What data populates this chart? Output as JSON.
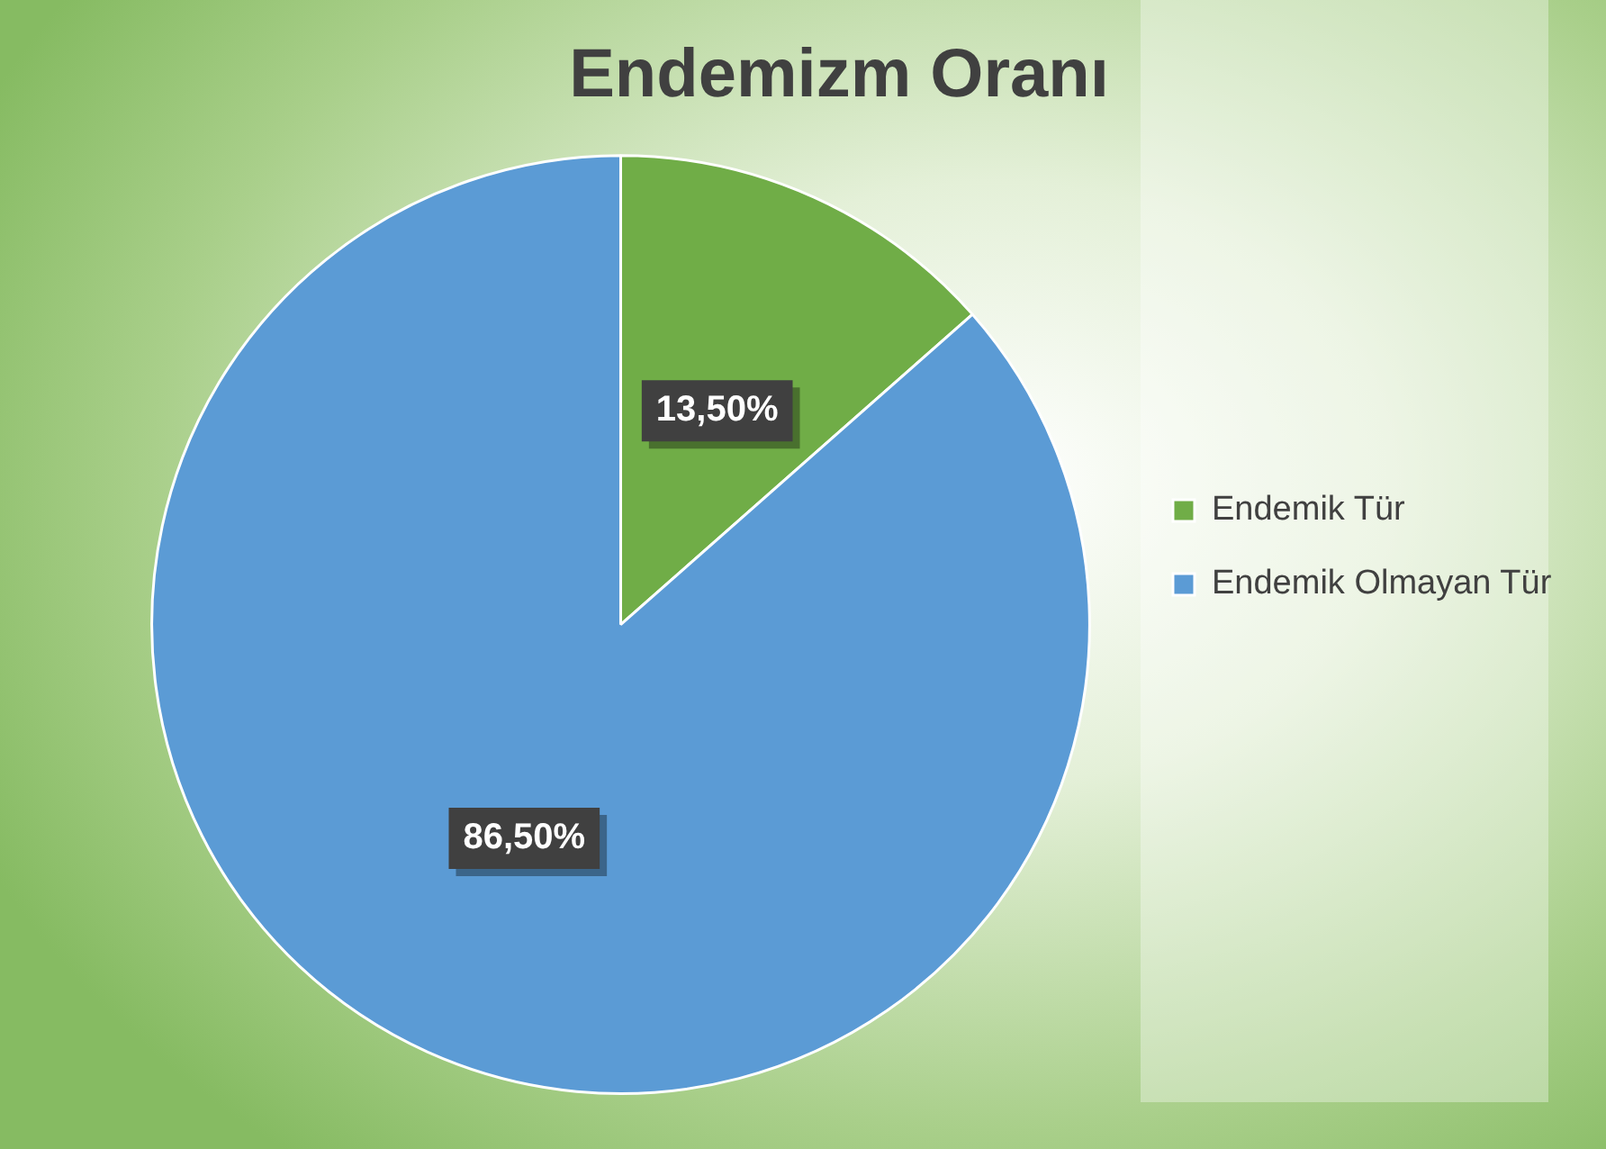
{
  "chart_data": {
    "type": "pie",
    "title": "Endemizm Oranı",
    "categories": [
      "Endemik Tür",
      "Endemik Olmayan Tür"
    ],
    "values": [
      13.5,
      86.5
    ],
    "colors": [
      "#70ad47",
      "#5b9bd5"
    ],
    "value_labels": [
      "13,50%",
      "86,50%"
    ],
    "legend": "right"
  }
}
